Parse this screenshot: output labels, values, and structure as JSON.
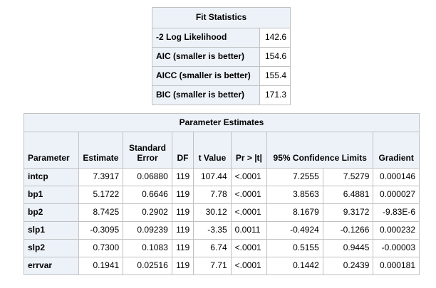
{
  "fit_statistics": {
    "caption": "Fit Statistics",
    "rows": [
      {
        "label": "-2 Log Likelihood",
        "value": "142.6"
      },
      {
        "label": "AIC (smaller is better)",
        "value": "154.6"
      },
      {
        "label": "AICC (smaller is better)",
        "value": "155.4"
      },
      {
        "label": "BIC (smaller is better)",
        "value": "171.3"
      }
    ]
  },
  "parameter_estimates": {
    "caption": "Parameter Estimates",
    "headers": {
      "parameter": "Parameter",
      "estimate": "Estimate",
      "stderr_line1": "Standard",
      "stderr_line2": "Error",
      "df": "DF",
      "tvalue": "t Value",
      "pvalue": "Pr > |t|",
      "ci": "95% Confidence Limits",
      "gradient": "Gradient"
    },
    "rows": [
      {
        "parameter": "intcp",
        "estimate": "7.3917",
        "stderr": "0.06880",
        "df": "119",
        "tvalue": "107.44",
        "pvalue": "<.0001",
        "lower": "7.2555",
        "upper": "7.5279",
        "gradient": "0.000146"
      },
      {
        "parameter": "bp1",
        "estimate": "5.1722",
        "stderr": "0.6646",
        "df": "119",
        "tvalue": "7.78",
        "pvalue": "<.0001",
        "lower": "3.8563",
        "upper": "6.4881",
        "gradient": "0.000027"
      },
      {
        "parameter": "bp2",
        "estimate": "8.7425",
        "stderr": "0.2902",
        "df": "119",
        "tvalue": "30.12",
        "pvalue": "<.0001",
        "lower": "8.1679",
        "upper": "9.3172",
        "gradient": "-9.83E-6"
      },
      {
        "parameter": "slp1",
        "estimate": "-0.3095",
        "stderr": "0.09239",
        "df": "119",
        "tvalue": "-3.35",
        "pvalue": "0.0011",
        "lower": "-0.4924",
        "upper": "-0.1266",
        "gradient": "0.000232"
      },
      {
        "parameter": "slp2",
        "estimate": "0.7300",
        "stderr": "0.1083",
        "df": "119",
        "tvalue": "6.74",
        "pvalue": "<.0001",
        "lower": "0.5155",
        "upper": "0.9445",
        "gradient": "-0.00003"
      },
      {
        "parameter": "errvar",
        "estimate": "0.1941",
        "stderr": "0.02516",
        "df": "119",
        "tvalue": "7.71",
        "pvalue": "<.0001",
        "lower": "0.1442",
        "upper": "0.2439",
        "gradient": "0.000181"
      }
    ]
  },
  "colors": {
    "header_background": "#edf2f9",
    "border": "#c1c1c1",
    "text": "#000000"
  }
}
